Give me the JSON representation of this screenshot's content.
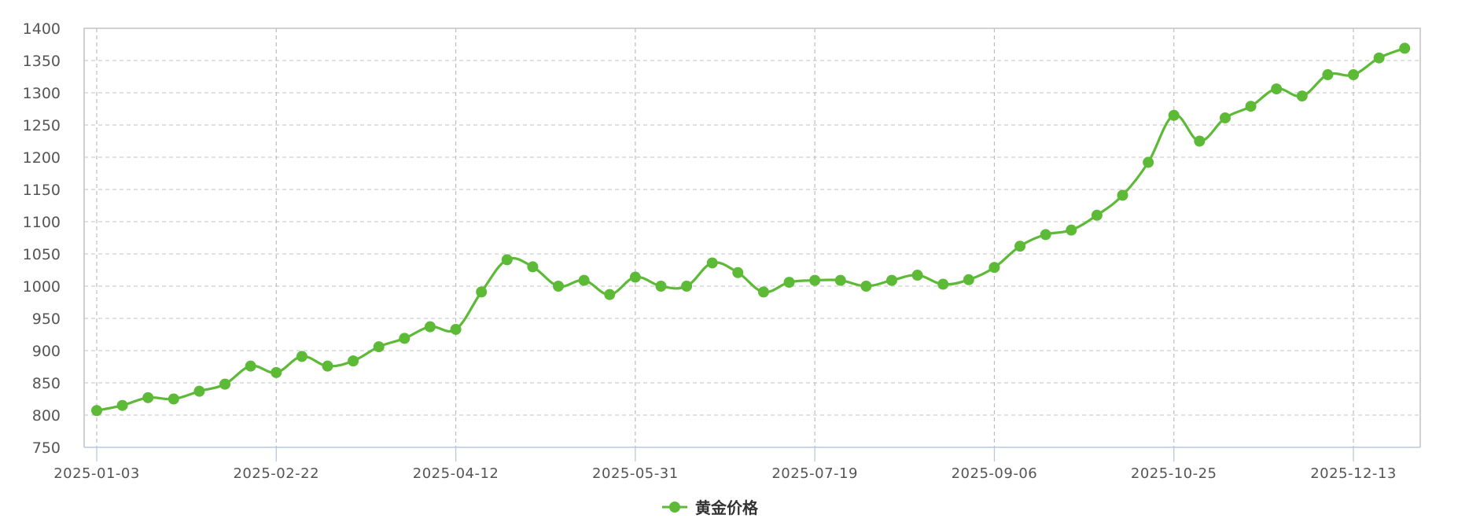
{
  "chart_data": {
    "type": "line",
    "title": "",
    "xlabel": "",
    "ylabel": "",
    "ylim": [
      750,
      1400
    ],
    "y_ticks": [
      "750",
      "800",
      "850",
      "900",
      "950",
      "1000",
      "1050",
      "1100",
      "1150",
      "1200",
      "1250",
      "1300",
      "1350",
      "1400"
    ],
    "x_tick_labels": [
      {
        "index": 0,
        "label": "2025-01-03"
      },
      {
        "index": 7,
        "label": "2025-02-22"
      },
      {
        "index": 14,
        "label": "2025-04-12"
      },
      {
        "index": 21,
        "label": "2025-05-31"
      },
      {
        "index": 28,
        "label": "2025-07-19"
      },
      {
        "index": 35,
        "label": "2025-09-06"
      },
      {
        "index": 42,
        "label": "2025-10-25"
      },
      {
        "index": 49,
        "label": "2025-12-13"
      }
    ],
    "grid": true,
    "smooth": true,
    "legend_position": "bottom-center",
    "series": [
      {
        "name": "黄金价格",
        "color": "#5dba37",
        "values": [
          807,
          815,
          827,
          825,
          837,
          848,
          876,
          866,
          891,
          876,
          884,
          906,
          919,
          937,
          933,
          991,
          1041,
          1030,
          1000,
          1009,
          987,
          1014,
          1000,
          1000,
          1036,
          1021,
          991,
          1006,
          1009,
          1009,
          1000,
          1009,
          1017,
          1003,
          1010,
          1029,
          1062,
          1080,
          1087,
          1110,
          1141,
          1192,
          1265,
          1225,
          1261,
          1279,
          1306,
          1295,
          1328,
          1328,
          1354,
          1369
        ]
      }
    ]
  }
}
